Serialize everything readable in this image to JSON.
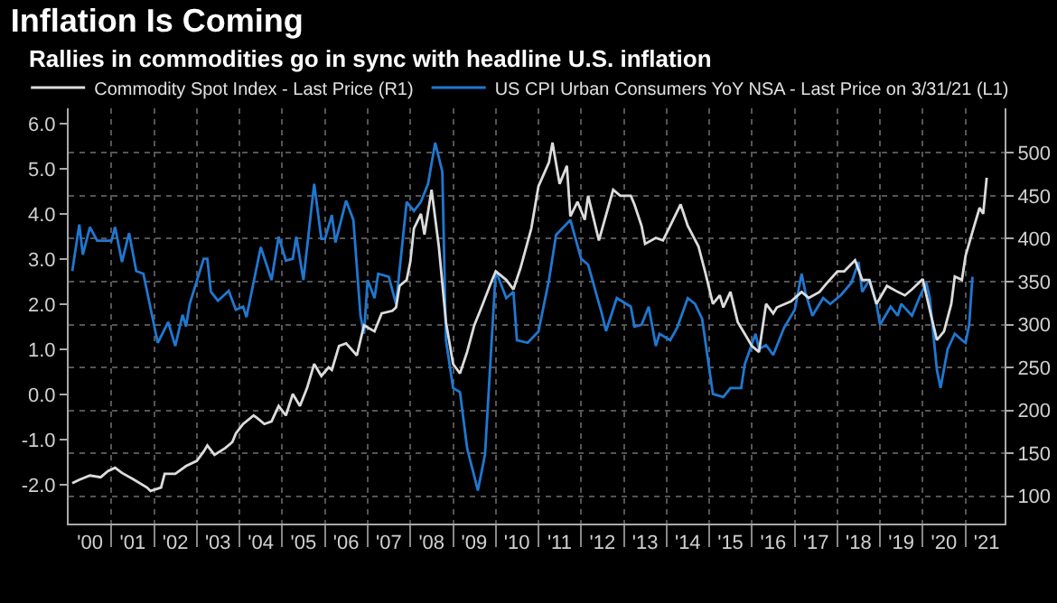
{
  "chart_data": {
    "type": "line",
    "title": "Inflation Is Coming",
    "subtitle": "Rallies in commodities go in sync with headline U.S. inflation",
    "legend": "top left",
    "grid": true,
    "marker": "none",
    "line_style": "solid",
    "xlim": [
      "2000-01",
      "2021-12"
    ],
    "xticks": [
      {
        "value": "2000-07",
        "label": "'00"
      },
      {
        "value": "2001-07",
        "label": "'01"
      },
      {
        "value": "2002-07",
        "label": "'02"
      },
      {
        "value": "2003-07",
        "label": "'03"
      },
      {
        "value": "2004-07",
        "label": "'04"
      },
      {
        "value": "2005-07",
        "label": "'05"
      },
      {
        "value": "2006-07",
        "label": "'06"
      },
      {
        "value": "2007-07",
        "label": "'07"
      },
      {
        "value": "2008-07",
        "label": "'08"
      },
      {
        "value": "2009-07",
        "label": "'09"
      },
      {
        "value": "2010-07",
        "label": "'10"
      },
      {
        "value": "2011-07",
        "label": "'11"
      },
      {
        "value": "2012-07",
        "label": "'12"
      },
      {
        "value": "2013-07",
        "label": "'13"
      },
      {
        "value": "2014-07",
        "label": "'14"
      },
      {
        "value": "2015-07",
        "label": "'15"
      },
      {
        "value": "2016-07",
        "label": "'16"
      },
      {
        "value": "2017-07",
        "label": "'17"
      },
      {
        "value": "2018-07",
        "label": "'18"
      },
      {
        "value": "2019-07",
        "label": "'19"
      },
      {
        "value": "2020-07",
        "label": "'20"
      },
      {
        "value": "2021-07",
        "label": "'21"
      },
      {
        "value": "2001",
        "label": null
      },
      {
        "value": "2002",
        "label": null
      },
      {
        "value": "2003",
        "label": null
      },
      {
        "value": "2004",
        "label": null
      },
      {
        "value": "2005",
        "label": null
      },
      {
        "value": "2006",
        "label": null
      },
      {
        "value": "2007",
        "label": null
      },
      {
        "value": "2008",
        "label": null
      },
      {
        "value": "2009",
        "label": null
      },
      {
        "value": "2010",
        "label": null
      },
      {
        "value": "2011",
        "label": null
      },
      {
        "value": "2012",
        "label": null
      },
      {
        "value": "2013",
        "label": null
      },
      {
        "value": "2014",
        "label": null
      },
      {
        "value": "2015",
        "label": null
      },
      {
        "value": "2016",
        "label": null
      },
      {
        "value": "2017",
        "label": null
      },
      {
        "value": "2018",
        "label": null
      },
      {
        "value": "2019",
        "label": null
      },
      {
        "value": "2020",
        "label": null
      },
      {
        "value": "2021",
        "label": null
      }
    ],
    "ylim": [
      -2.85,
      6.34
    ],
    "yticks": [
      {
        "value": -2,
        "label": "-2.0"
      },
      {
        "value": -1,
        "label": "-1.0"
      },
      {
        "value": 0,
        "label": "0.0"
      },
      {
        "value": 1,
        "label": "1.0"
      },
      {
        "value": 2,
        "label": "2.0"
      },
      {
        "value": 3,
        "label": "3.0"
      },
      {
        "value": 4,
        "label": "4.0"
      },
      {
        "value": 5,
        "label": "5.0"
      },
      {
        "value": 6,
        "label": "6.0"
      }
    ],
    "y2lim": [
      68,
      552
    ],
    "y2ticks": [
      100,
      150,
      200,
      250,
      300,
      350,
      400,
      450,
      500
    ],
    "series": [
      {
        "name": "Commodity Spot Index - Last Price (R1)",
        "color": "#dcdcdc",
        "axis": "y2",
        "x": [
          "2000-02",
          "2000-04",
          "2000-07",
          "2000-10",
          "2000-12",
          "2001-02",
          "2001-04",
          "2001-07",
          "2001-11",
          "2001-12",
          "2002-03",
          "2002-04",
          "2002-07",
          "2002-10",
          "2003-01",
          "2003-03",
          "2003-04",
          "2003-06",
          "2003-09",
          "2003-11",
          "2003-12",
          "2004-02",
          "2004-05",
          "2004-06",
          "2004-08",
          "2004-10",
          "2004-12",
          "2005-02",
          "2005-04",
          "2005-06",
          "2005-08",
          "2005-10",
          "2005-12",
          "2006-02",
          "2006-03",
          "2006-05",
          "2006-07",
          "2006-10",
          "2006-12",
          "2007-03",
          "2007-05",
          "2007-08",
          "2007-09",
          "2007-10",
          "2007-12",
          "2008-01",
          "2008-02",
          "2008-04",
          "2008-05",
          "2008-07",
          "2008-09",
          "2008-11",
          "2009-01",
          "2009-03",
          "2009-05",
          "2009-07",
          "2009-09",
          "2009-12",
          "2010-01",
          "2010-04",
          "2010-06",
          "2010-08",
          "2010-11",
          "2011-01",
          "2011-04",
          "2011-05",
          "2011-07",
          "2011-09",
          "2011-10",
          "2011-12",
          "2012-02",
          "2012-03",
          "2012-06",
          "2012-10",
          "2012-12",
          "2013-03",
          "2013-04",
          "2013-06",
          "2013-07",
          "2013-10",
          "2013-12",
          "2014-02",
          "2014-05",
          "2014-07",
          "2014-10",
          "2014-12",
          "2015-02",
          "2015-04",
          "2015-05",
          "2015-07",
          "2015-09",
          "2015-11",
          "2016-01",
          "2016-03",
          "2016-05",
          "2016-07",
          "2016-08",
          "2016-12",
          "2017-03",
          "2017-05",
          "2017-08",
          "2017-10",
          "2018-01",
          "2018-03",
          "2018-06",
          "2018-08",
          "2018-10",
          "2018-12",
          "2019-03",
          "2019-06",
          "2019-08",
          "2019-10",
          "2020-01",
          "2020-03",
          "2020-05",
          "2020-07",
          "2020-09",
          "2020-10",
          "2020-12",
          "2021-01",
          "2021-03",
          "2021-05",
          "2021-06",
          "2021-07"
        ],
        "values": [
          115,
          119,
          124,
          122,
          129,
          133,
          127,
          120,
          110,
          106,
          110,
          126,
          126,
          135,
          141,
          152,
          159,
          148,
          156,
          163,
          173,
          184,
          194,
          191,
          184,
          187,
          205,
          194,
          219,
          205,
          226,
          254,
          240,
          250,
          247,
          275,
          278,
          264,
          299,
          292,
          313,
          316,
          320,
          345,
          352,
          373,
          412,
          429,
          405,
          457,
          391,
          303,
          254,
          243,
          268,
          299,
          320,
          352,
          362,
          352,
          341,
          366,
          412,
          461,
          489,
          512,
          464,
          485,
          426,
          443,
          422,
          450,
          398,
          457,
          450,
          450,
          440,
          415,
          394,
          401,
          398,
          415,
          440,
          415,
          391,
          359,
          324,
          334,
          320,
          338,
          303,
          289,
          275,
          268,
          324,
          313,
          320,
          327,
          338,
          331,
          338,
          348,
          362,
          362,
          375,
          352,
          352,
          324,
          345,
          338,
          334,
          341,
          353,
          317,
          282,
          292,
          324,
          356,
          352,
          380,
          408,
          436,
          429,
          471
        ]
      },
      {
        "name": "US CPI Urban Consumers YoY NSA - Last Price on 3/31/21 (L1)",
        "color": "#1f78d1",
        "x": [
          "2000-02",
          "2000-04",
          "2000-05",
          "2000-07",
          "2000-09",
          "2001-01",
          "2001-02",
          "2001-04",
          "2001-06",
          "2001-08",
          "2001-10",
          "2002-02",
          "2002-05",
          "2002-07",
          "2002-09",
          "2002-10",
          "2002-11",
          "2003-03",
          "2003-04",
          "2003-05",
          "2003-07",
          "2003-10",
          "2003-12",
          "2004-02",
          "2004-03",
          "2004-07",
          "2004-10",
          "2004-12",
          "2005-02",
          "2005-04",
          "2005-05",
          "2005-07",
          "2005-10",
          "2005-12",
          "2006-01",
          "2006-03",
          "2006-04",
          "2006-07",
          "2006-09",
          "2006-11",
          "2006-12",
          "2007-01",
          "2007-03",
          "2007-04",
          "2007-07",
          "2007-09",
          "2007-12",
          "2008-02",
          "2008-04",
          "2008-06",
          "2008-08",
          "2008-10",
          "2008-11",
          "2009-01",
          "2009-03",
          "2009-05",
          "2009-08",
          "2009-10",
          "2010-01",
          "2010-02",
          "2010-04",
          "2010-06",
          "2010-07",
          "2010-10",
          "2011-01",
          "2011-04",
          "2011-06",
          "2011-10",
          "2012-01",
          "2012-03",
          "2012-07",
          "2012-08",
          "2012-11",
          "2013-03",
          "2013-04",
          "2013-06",
          "2013-08",
          "2013-10",
          "2013-11",
          "2014-02",
          "2014-04",
          "2014-07",
          "2014-09",
          "2014-11",
          "2015-02",
          "2015-05",
          "2015-07",
          "2015-10",
          "2015-11",
          "2016-02",
          "2016-03",
          "2016-05",
          "2016-07",
          "2016-10",
          "2017-01",
          "2017-03",
          "2017-04",
          "2017-06",
          "2017-09",
          "2017-11",
          "2018-02",
          "2018-05",
          "2018-07",
          "2018-08",
          "2018-10",
          "2018-12",
          "2019-01",
          "2019-04",
          "2019-06",
          "2019-07",
          "2019-10",
          "2019-12",
          "2020-02",
          "2020-03",
          "2020-05",
          "2020-06",
          "2020-08",
          "2020-10",
          "2020-12",
          "2021-01",
          "2021-02",
          "2021-03"
        ],
        "values": [
          2.74,
          3.77,
          3.1,
          3.71,
          3.41,
          3.41,
          3.71,
          2.94,
          3.58,
          2.74,
          2.68,
          1.15,
          1.61,
          1.08,
          1.77,
          1.51,
          2.01,
          3.01,
          3.01,
          2.28,
          2.08,
          2.3,
          1.88,
          1.95,
          1.72,
          3.27,
          2.54,
          3.5,
          2.97,
          3.01,
          3.5,
          2.54,
          4.67,
          3.45,
          3.45,
          3.98,
          3.37,
          4.3,
          3.87,
          1.75,
          1.35,
          2.54,
          2.14,
          2.68,
          2.61,
          2.01,
          4.27,
          4.07,
          4.27,
          4.67,
          5.58,
          4.94,
          1.21,
          0.15,
          0.06,
          -1.18,
          -2.12,
          -1.32,
          2.74,
          2.54,
          2.14,
          2.28,
          1.21,
          1.15,
          1.4,
          2.54,
          3.54,
          3.87,
          3.01,
          2.88,
          1.75,
          1.41,
          2.14,
          1.95,
          1.51,
          1.55,
          1.95,
          1.08,
          1.35,
          1.21,
          1.48,
          2.14,
          2.01,
          1.68,
          0.02,
          -0.05,
          0.15,
          0.15,
          0.68,
          1.35,
          1.01,
          1.1,
          0.88,
          1.48,
          1.88,
          2.68,
          2.28,
          1.75,
          2.14,
          2.01,
          2.21,
          2.48,
          2.94,
          2.28,
          2.54,
          2.01,
          1.55,
          1.95,
          1.75,
          2.01,
          1.75,
          2.14,
          2.48,
          2.14,
          0.55,
          0.15,
          1.01,
          1.35,
          1.21,
          1.15,
          1.55,
          2.61
        ]
      }
    ]
  }
}
